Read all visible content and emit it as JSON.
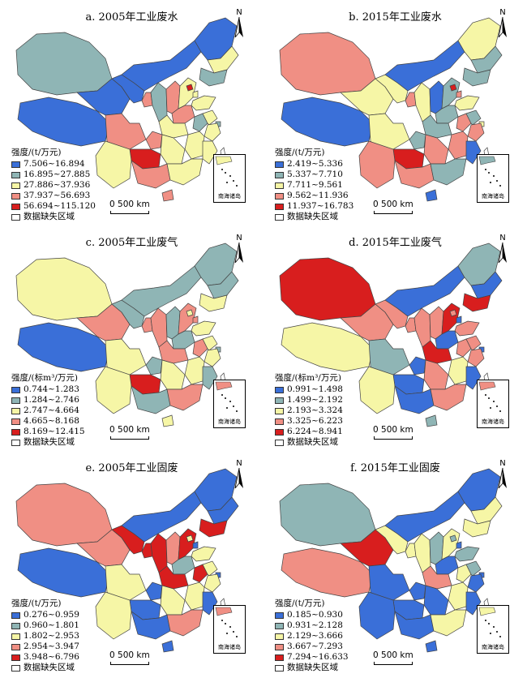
{
  "colors": {
    "class1": "#3a6fd8",
    "class2": "#8fb5b5",
    "class3": "#f6f6a6",
    "class4": "#f08f84",
    "class5": "#d81e1e",
    "missing": "#ffffff",
    "border": "#444444"
  },
  "common": {
    "north_label": "N",
    "scale_label": "0    500 km",
    "inset_label": "南海诸岛",
    "missing_label": "数据缺失区域"
  },
  "panels": [
    {
      "title": "a. 2005年工业废水",
      "legend_title": "强度/(t/万元)",
      "classes": [
        "7.506~16.894",
        "16.895~27.885",
        "27.886~37.936",
        "37.937~56.693",
        "56.694~115.120"
      ],
      "map_classes": [
        "c2",
        "c1",
        "c1",
        "c1",
        "c1",
        "c4",
        "c2",
        "c4",
        "c3",
        "c1",
        "c3",
        "c2",
        "c5",
        "c3",
        "c3",
        "c4",
        "c2",
        "c3",
        "c2",
        "c3",
        "c3",
        "c4",
        "c4",
        "c3",
        "c3",
        "c3",
        "c5",
        "c3",
        "c4",
        "c3",
        "c4"
      ]
    },
    {
      "title": "b. 2015年工业废水",
      "legend_title": "强度/(t/万元)",
      "classes": [
        "2.419~5.336",
        "5.337~7.710",
        "7.711~9.561",
        "9.562~11.936",
        "11.937~16.783"
      ],
      "map_classes": [
        "c4",
        "c1",
        "c3",
        "c3",
        "c1",
        "c4",
        "c3",
        "c1",
        "c2",
        "c3",
        "c2",
        "c2",
        "c5",
        "c4",
        "c3",
        "c2",
        "c4",
        "c2",
        "c3",
        "c4",
        "c2",
        "c3",
        "c2",
        "c4",
        "c1",
        "c4",
        "c5",
        "c4",
        "c4",
        "c2",
        "c1"
      ]
    },
    {
      "title": "c. 2005年工业废气",
      "legend_title": "强度/(标m³/万元)",
      "classes": [
        "0.744~1.283",
        "1.284~2.746",
        "2.747~4.664",
        "4.665~8.168",
        "8.169~12.415"
      ],
      "map_classes": [
        "c3",
        "c1",
        "c4",
        "c2",
        "c2",
        "c4",
        "c4",
        "c2",
        "c4",
        "c2",
        "c2",
        "c3",
        "c3",
        "c4",
        "c3",
        "c2",
        "c4",
        "c3",
        "c2",
        "c3",
        "c4",
        "c3",
        "c2",
        "c3",
        "c2",
        "c3",
        "c5",
        "c3",
        "c2",
        "c4",
        "c3"
      ]
    },
    {
      "title": "d. 2015年工业废气",
      "legend_title": "强度/(标m³/万元)",
      "classes": [
        "0.991~1.498",
        "1.499~2.192",
        "2.193~3.324",
        "3.325~6.223",
        "6.224~8.941"
      ],
      "map_classes": [
        "c5",
        "c3",
        "c4",
        "c4",
        "c1",
        "c4",
        "c4",
        "c4",
        "c5",
        "c2",
        "c1",
        "c5",
        "c4",
        "c1",
        "c4",
        "c1",
        "c4",
        "c4",
        "c1",
        "c4",
        "c5",
        "c2",
        "c1",
        "c3",
        "c1",
        "c4",
        "c1",
        "c3",
        "c1",
        "c4",
        "c2"
      ]
    },
    {
      "title": "e. 2005年工业固废",
      "legend_title": "强度/(t/万元)",
      "classes": [
        "0.276~0.959",
        "0.960~1.801",
        "1.802~2.953",
        "2.954~3.947",
        "3.948~6.796"
      ],
      "map_classes": [
        "c4",
        "c1",
        "c4",
        "c5",
        "c1",
        "c5",
        "c5",
        "c4",
        "c5",
        "c1",
        "c1",
        "c5",
        "c3",
        "c1",
        "c3",
        "c2",
        "c5",
        "c3",
        "c1",
        "c3",
        "c5",
        "c3",
        "c1",
        "c3",
        "c1",
        "c3",
        "c1",
        "c3",
        "c1",
        "c4",
        "c1"
      ]
    },
    {
      "title": "f. 2015年工业固废",
      "legend_title": "强度/(t/万元)",
      "classes": [
        "0.185~0.930",
        "0.931~2.128",
        "2.129~3.666",
        "3.667~7.293",
        "7.294~16.633"
      ],
      "map_classes": [
        "c2",
        "c4",
        "c5",
        "c3",
        "c1",
        "c3",
        "c3",
        "c2",
        "c3",
        "c1",
        "c3",
        "c3",
        "c2",
        "c1",
        "c2",
        "c1",
        "c3",
        "c2",
        "c1",
        "c1",
        "c4",
        "c1",
        "c1",
        "c3",
        "c1",
        "c1",
        "c1",
        "c1",
        "c1",
        "c3",
        "c1"
      ]
    }
  ]
}
